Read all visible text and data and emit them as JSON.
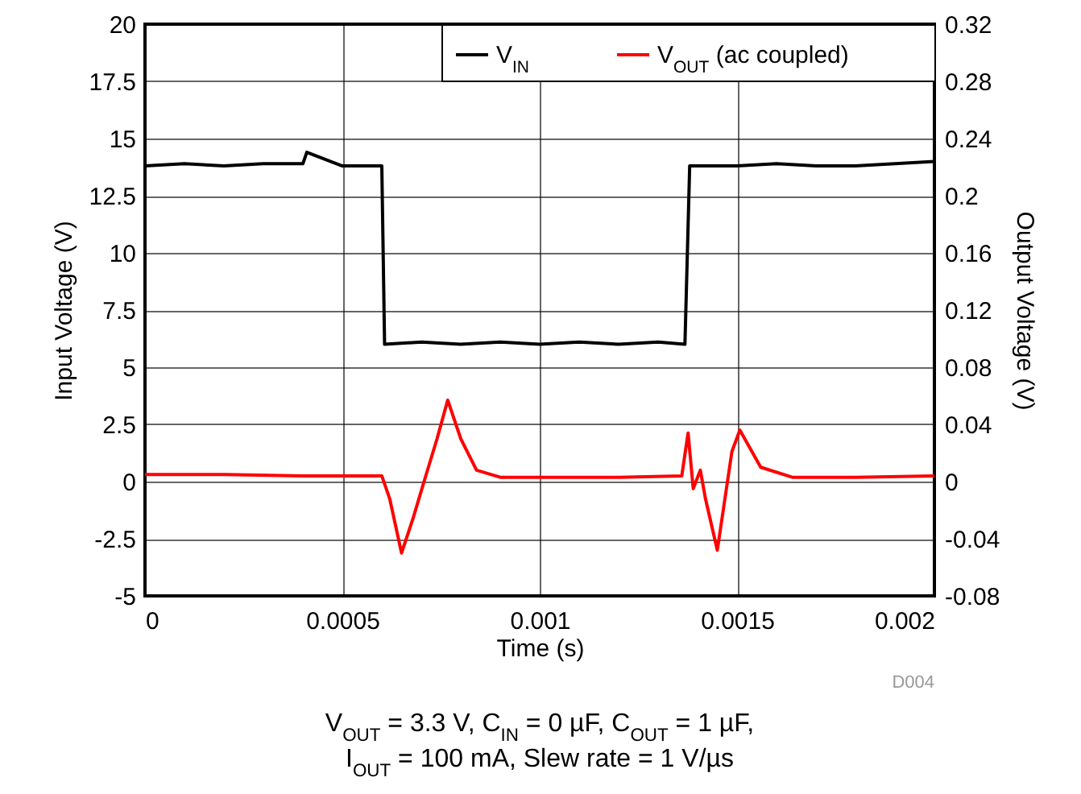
{
  "chart_data": {
    "type": "line",
    "xlabel": "Time (s)",
    "ylabel": "Input Voltage (V)",
    "y2label": "Output Voltage (V)",
    "xlim": [
      0,
      0.002
    ],
    "xticks": [
      0,
      0.0005,
      0.001,
      0.0015,
      0.002
    ],
    "ylim": [
      -5,
      20
    ],
    "yticks": [
      -5,
      -2.5,
      0,
      2.5,
      5,
      7.5,
      10,
      12.5,
      15,
      17.5,
      20
    ],
    "y2lim": [
      -0.08,
      0.32
    ],
    "y2ticks": [
      -0.08,
      -0.04,
      0,
      0.04,
      0.08,
      0.12,
      0.16,
      0.2,
      0.24,
      0.28,
      0.32
    ],
    "grid": true,
    "legend": "top right",
    "series": [
      {
        "name": "V$_{IN}$",
        "color": "#000000",
        "x": [
          0,
          0.0001,
          0.0002,
          0.0003,
          0.0004,
          0.00041,
          0.0005,
          0.0006,
          0.000607,
          0.0007,
          0.0008,
          0.0009,
          0.001,
          0.0011,
          0.0012,
          0.0013,
          0.001368,
          0.00138,
          0.0015,
          0.0016,
          0.0017,
          0.0018,
          0.0019,
          0.002
        ],
        "values": [
          13.8,
          13.9,
          13.8,
          13.9,
          13.9,
          14.4,
          13.8,
          13.8,
          6,
          6.1,
          6,
          6.1,
          6,
          6.1,
          6,
          6.1,
          6,
          13.8,
          13.8,
          13.9,
          13.8,
          13.8,
          13.9,
          14
        ]
      },
      {
        "name": "V$_{OUT}$ (ac coupled)",
        "color": "#ff0000",
        "axis": "y2",
        "x": [
          0,
          0.0002,
          0.0004,
          0.0006,
          0.00062,
          0.00065,
          0.00068,
          0.000707,
          0.00074,
          0.000767,
          0.0008,
          0.00084,
          0.0009,
          0.001,
          0.0012,
          0.00136,
          0.001376,
          0.001389,
          0.001407,
          0.00142,
          0.00145,
          0.001487,
          0.001507,
          0.00156,
          0.00164,
          0.0018,
          0.002
        ],
        "values": [
          0.005,
          0.005,
          0.004,
          0.004,
          -0.012,
          -0.05,
          -0.025,
          0,
          0.03,
          0.057,
          0.03,
          0.008,
          0.003,
          0.003,
          0.003,
          0.004,
          0.034,
          -0.005,
          0.008,
          -0.012,
          -0.048,
          0.021,
          0.036,
          0.01,
          0.003,
          0.003,
          0.004
        ]
      }
    ],
    "annotations": [
      "V$_{OUT}$ = 3.3 V, C$_{IN}$ = 0 µF, C$_{OUT}$ = 1 µF,",
      "I$_{OUT}$ = 100 mA, Slew rate = 1 V/µs",
      "D004"
    ]
  }
}
